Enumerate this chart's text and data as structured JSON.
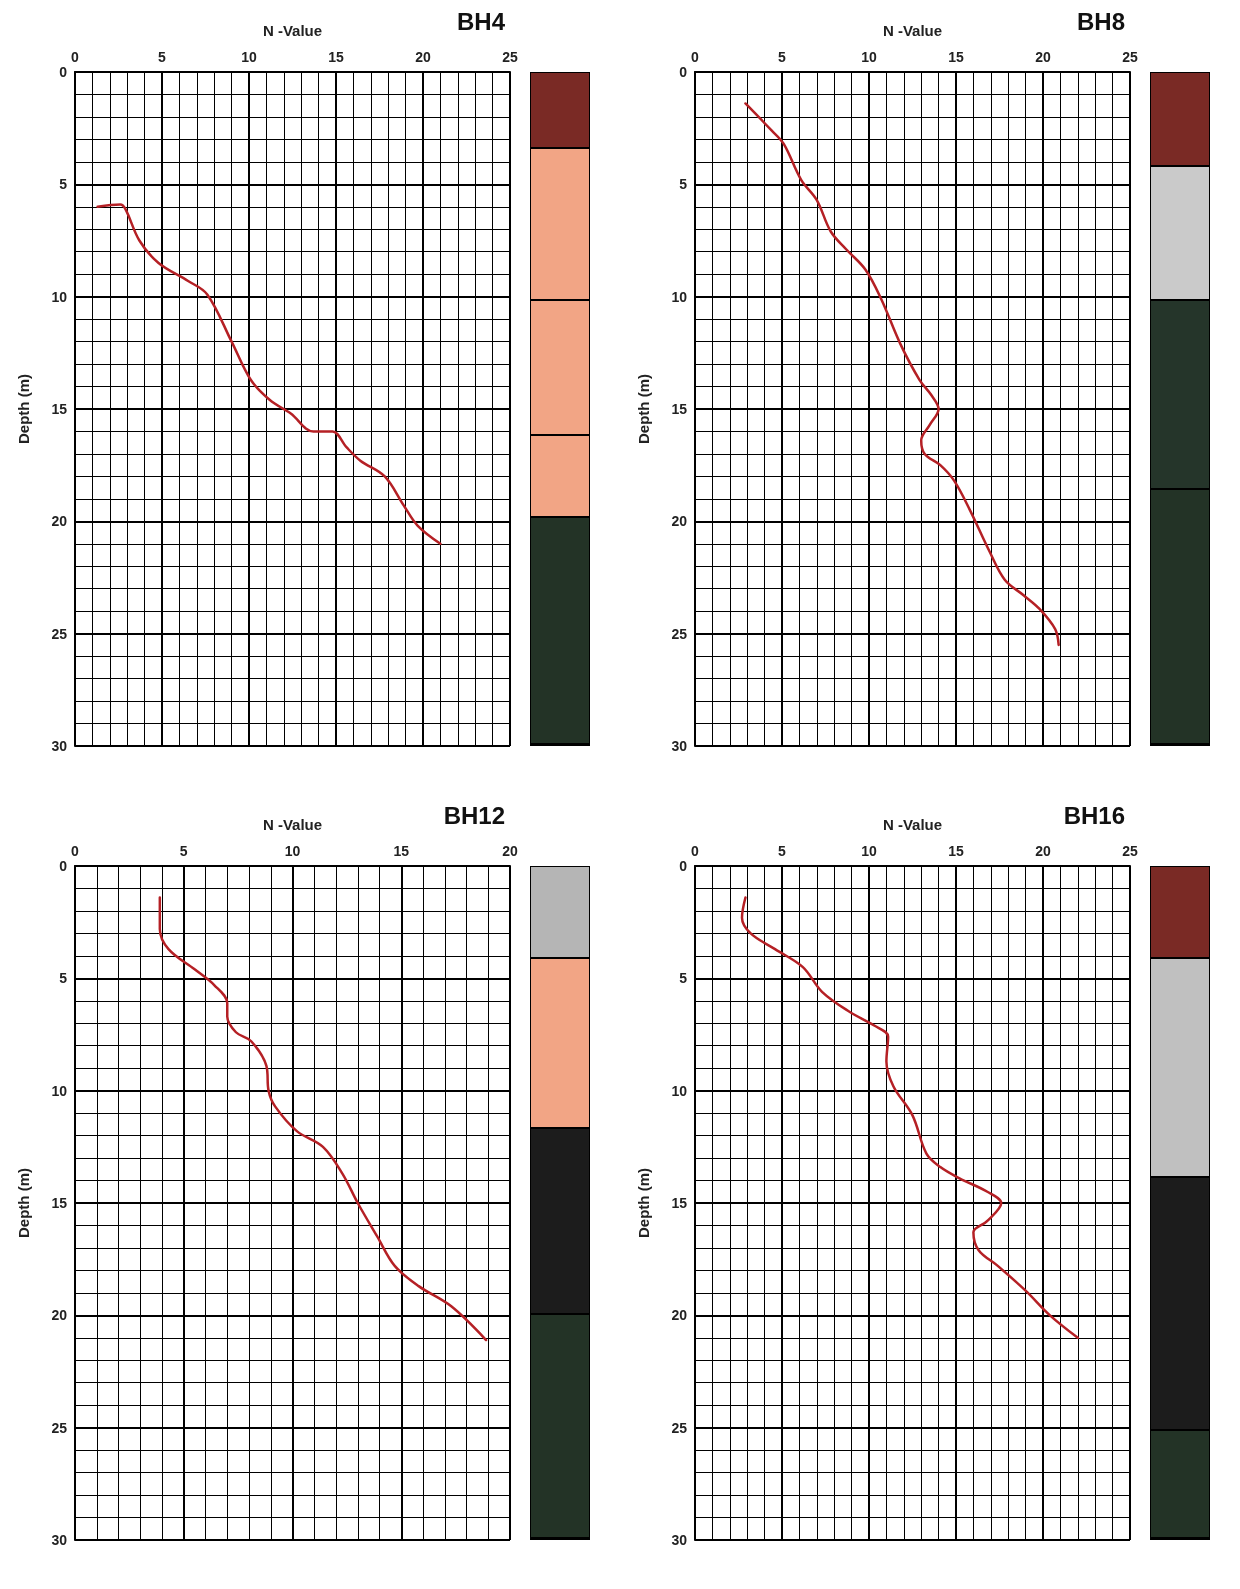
{
  "chart_data": [
    {
      "type": "line",
      "title": "BH4",
      "xlabel": "N -Value",
      "ylabel": "Depth (m)",
      "xlim": [
        0,
        25
      ],
      "xticks": [
        0,
        5,
        10,
        15,
        20,
        25
      ],
      "ylim": [
        30,
        0
      ],
      "yticks": [
        0,
        5,
        10,
        15,
        20,
        25,
        30
      ],
      "grid": true,
      "marker": "none",
      "line_style": "solid",
      "series": [
        {
          "color": "#b52025",
          "x": [
            1.3,
            2.6,
            2.9,
            3.7,
            4.8,
            6.5,
            7.6,
            9.0,
            10.1,
            11.2,
            12.4,
            13.7,
            14.8,
            15.6,
            16.4,
            17.8,
            18.9,
            19.7,
            21.0
          ],
          "values": [
            6.0,
            5.9,
            6.1,
            7.5,
            8.5,
            9.3,
            9.9,
            12.0,
            13.7,
            14.6,
            15.2,
            16.0,
            16.0,
            16.7,
            17.3,
            18.0,
            19.3,
            20.2,
            21.0
          ]
        }
      ]
    },
    {
      "type": "line",
      "title": "BH8",
      "xlabel": "N -Value",
      "ylabel": "Depth (m)",
      "xlim": [
        0,
        25
      ],
      "xticks": [
        0,
        5,
        10,
        15,
        20,
        25
      ],
      "ylim": [
        30,
        0
      ],
      "yticks": [
        0,
        5,
        10,
        15,
        20,
        25,
        30
      ],
      "grid": true,
      "marker": "none",
      "line_style": "solid",
      "series": [
        {
          "color": "#b52025",
          "x": [
            2.9,
            4.4,
            5.1,
            6.1,
            7.0,
            7.8,
            8.7,
            9.8,
            10.7,
            11.8,
            12.9,
            13.6,
            14.0,
            13.5,
            13.0,
            13.2,
            14.1,
            14.9,
            15.8,
            16.9,
            17.8,
            18.9,
            19.8,
            20.7,
            20.9
          ],
          "values": [
            1.4,
            2.6,
            3.2,
            4.8,
            5.7,
            7.1,
            7.9,
            8.8,
            10.1,
            12.1,
            13.7,
            14.4,
            15.0,
            15.7,
            16.4,
            17.0,
            17.5,
            18.2,
            19.5,
            21.3,
            22.6,
            23.3,
            23.9,
            24.8,
            25.5
          ]
        }
      ]
    },
    {
      "type": "line",
      "title": "BH12",
      "xlabel": "N -Value",
      "ylabel": "Depth (m)",
      "xlim": [
        0,
        20
      ],
      "xticks": [
        0,
        5,
        10,
        15,
        20
      ],
      "ylim": [
        30,
        0
      ],
      "yticks": [
        0,
        5,
        10,
        15,
        20,
        25,
        30
      ],
      "grid": true,
      "marker": "none",
      "line_style": "solid",
      "series": [
        {
          "color": "#b52025",
          "x": [
            3.9,
            3.9,
            4.3,
            5.5,
            6.4,
            7.0,
            7.0,
            7.4,
            8.1,
            8.8,
            8.9,
            9.2,
            10.2,
            11.4,
            12.3,
            13.0,
            13.9,
            14.7,
            15.8,
            17.3,
            18.9
          ],
          "values": [
            1.4,
            2.8,
            3.7,
            4.6,
            5.3,
            6.1,
            6.7,
            7.4,
            7.8,
            8.9,
            10.0,
            10.7,
            11.8,
            12.5,
            13.7,
            15.0,
            16.5,
            17.8,
            18.7,
            19.6,
            21.1
          ]
        }
      ]
    },
    {
      "type": "line",
      "title": "BH16",
      "xlabel": "N -Value",
      "ylabel": "Depth (m)",
      "xlim": [
        0,
        25
      ],
      "xticks": [
        0,
        5,
        10,
        15,
        20,
        25
      ],
      "ylim": [
        30,
        0
      ],
      "yticks": [
        0,
        5,
        10,
        15,
        20,
        25,
        30
      ],
      "grid": true,
      "marker": "none",
      "line_style": "solid",
      "series": [
        {
          "color": "#b52025",
          "x": [
            2.9,
            2.7,
            3.2,
            4.6,
            6.2,
            7.3,
            8.9,
            10.3,
            11.1,
            11.0,
            11.4,
            12.5,
            13.3,
            14.1,
            15.2,
            16.8,
            17.6,
            16.8,
            16.0,
            16.3,
            17.4,
            19.0,
            20.4,
            22.0
          ],
          "values": [
            1.4,
            2.3,
            3.0,
            3.7,
            4.5,
            5.6,
            6.5,
            7.1,
            7.6,
            8.7,
            9.8,
            11.1,
            12.8,
            13.4,
            13.9,
            14.5,
            15.0,
            15.8,
            16.3,
            17.1,
            17.8,
            18.9,
            20.0,
            21.0
          ]
        }
      ]
    }
  ]
}
